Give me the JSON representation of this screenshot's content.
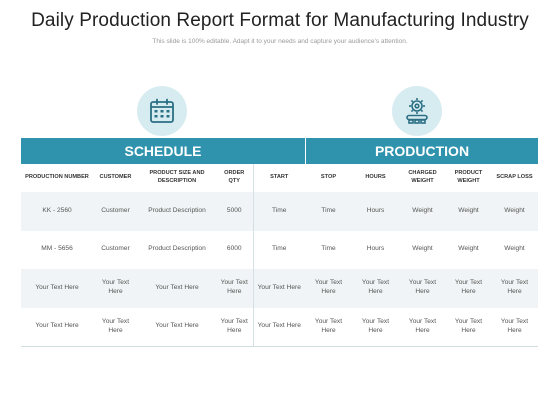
{
  "header": {
    "title": "Daily Production Report Format for Manufacturing Industry",
    "subtitle": "This slide is 100% editable. Adapt it to your needs and capture your audience's attention."
  },
  "icons": {
    "schedule": "calendar-icon",
    "production": "gear-production-icon"
  },
  "colors": {
    "band": "#2f93ad",
    "icon_bg": "#d7ecf1",
    "icon_stroke": "#2b6f84",
    "row_shade": "#f1f4f6"
  },
  "sections": {
    "schedule": "SCHEDULE",
    "production": "PRODUCTION"
  },
  "columns": [
    "PRODUCTION NUMBER",
    "CUSTOMER",
    "PRODUCT SIZE AND DESCRIPTION",
    "ORDER QTY",
    "START",
    "STOP",
    "HOURS",
    "CHARGED WEIGHT",
    "PRODUCT WEIGHT",
    "SCRAP LOSS"
  ],
  "rows": [
    [
      "KK - 2560",
      "Customer",
      "Product Description",
      "5000",
      "Time",
      "Time",
      "Hours",
      "Weight",
      "Weight",
      "Weight"
    ],
    [
      "MM - 5656",
      "Customer",
      "Product Description",
      "6000",
      "Time",
      "Time",
      "Hours",
      "Weight",
      "Weight",
      "Weight"
    ],
    [
      "Your Text Here",
      "Your Text Here",
      "Your Text Here",
      "Your Text Here",
      "Your Text Here",
      "Your Text Here",
      "Your Text Here",
      "Your Text Here",
      "Your Text Here",
      "Your Text Here"
    ],
    [
      "Your Text Here",
      "Your Text Here",
      "Your Text Here",
      "Your Text Here",
      "Your Text Here",
      "Your Text Here",
      "Your Text Here",
      "Your Text Here",
      "Your Text Here",
      "Your Text Here"
    ]
  ]
}
